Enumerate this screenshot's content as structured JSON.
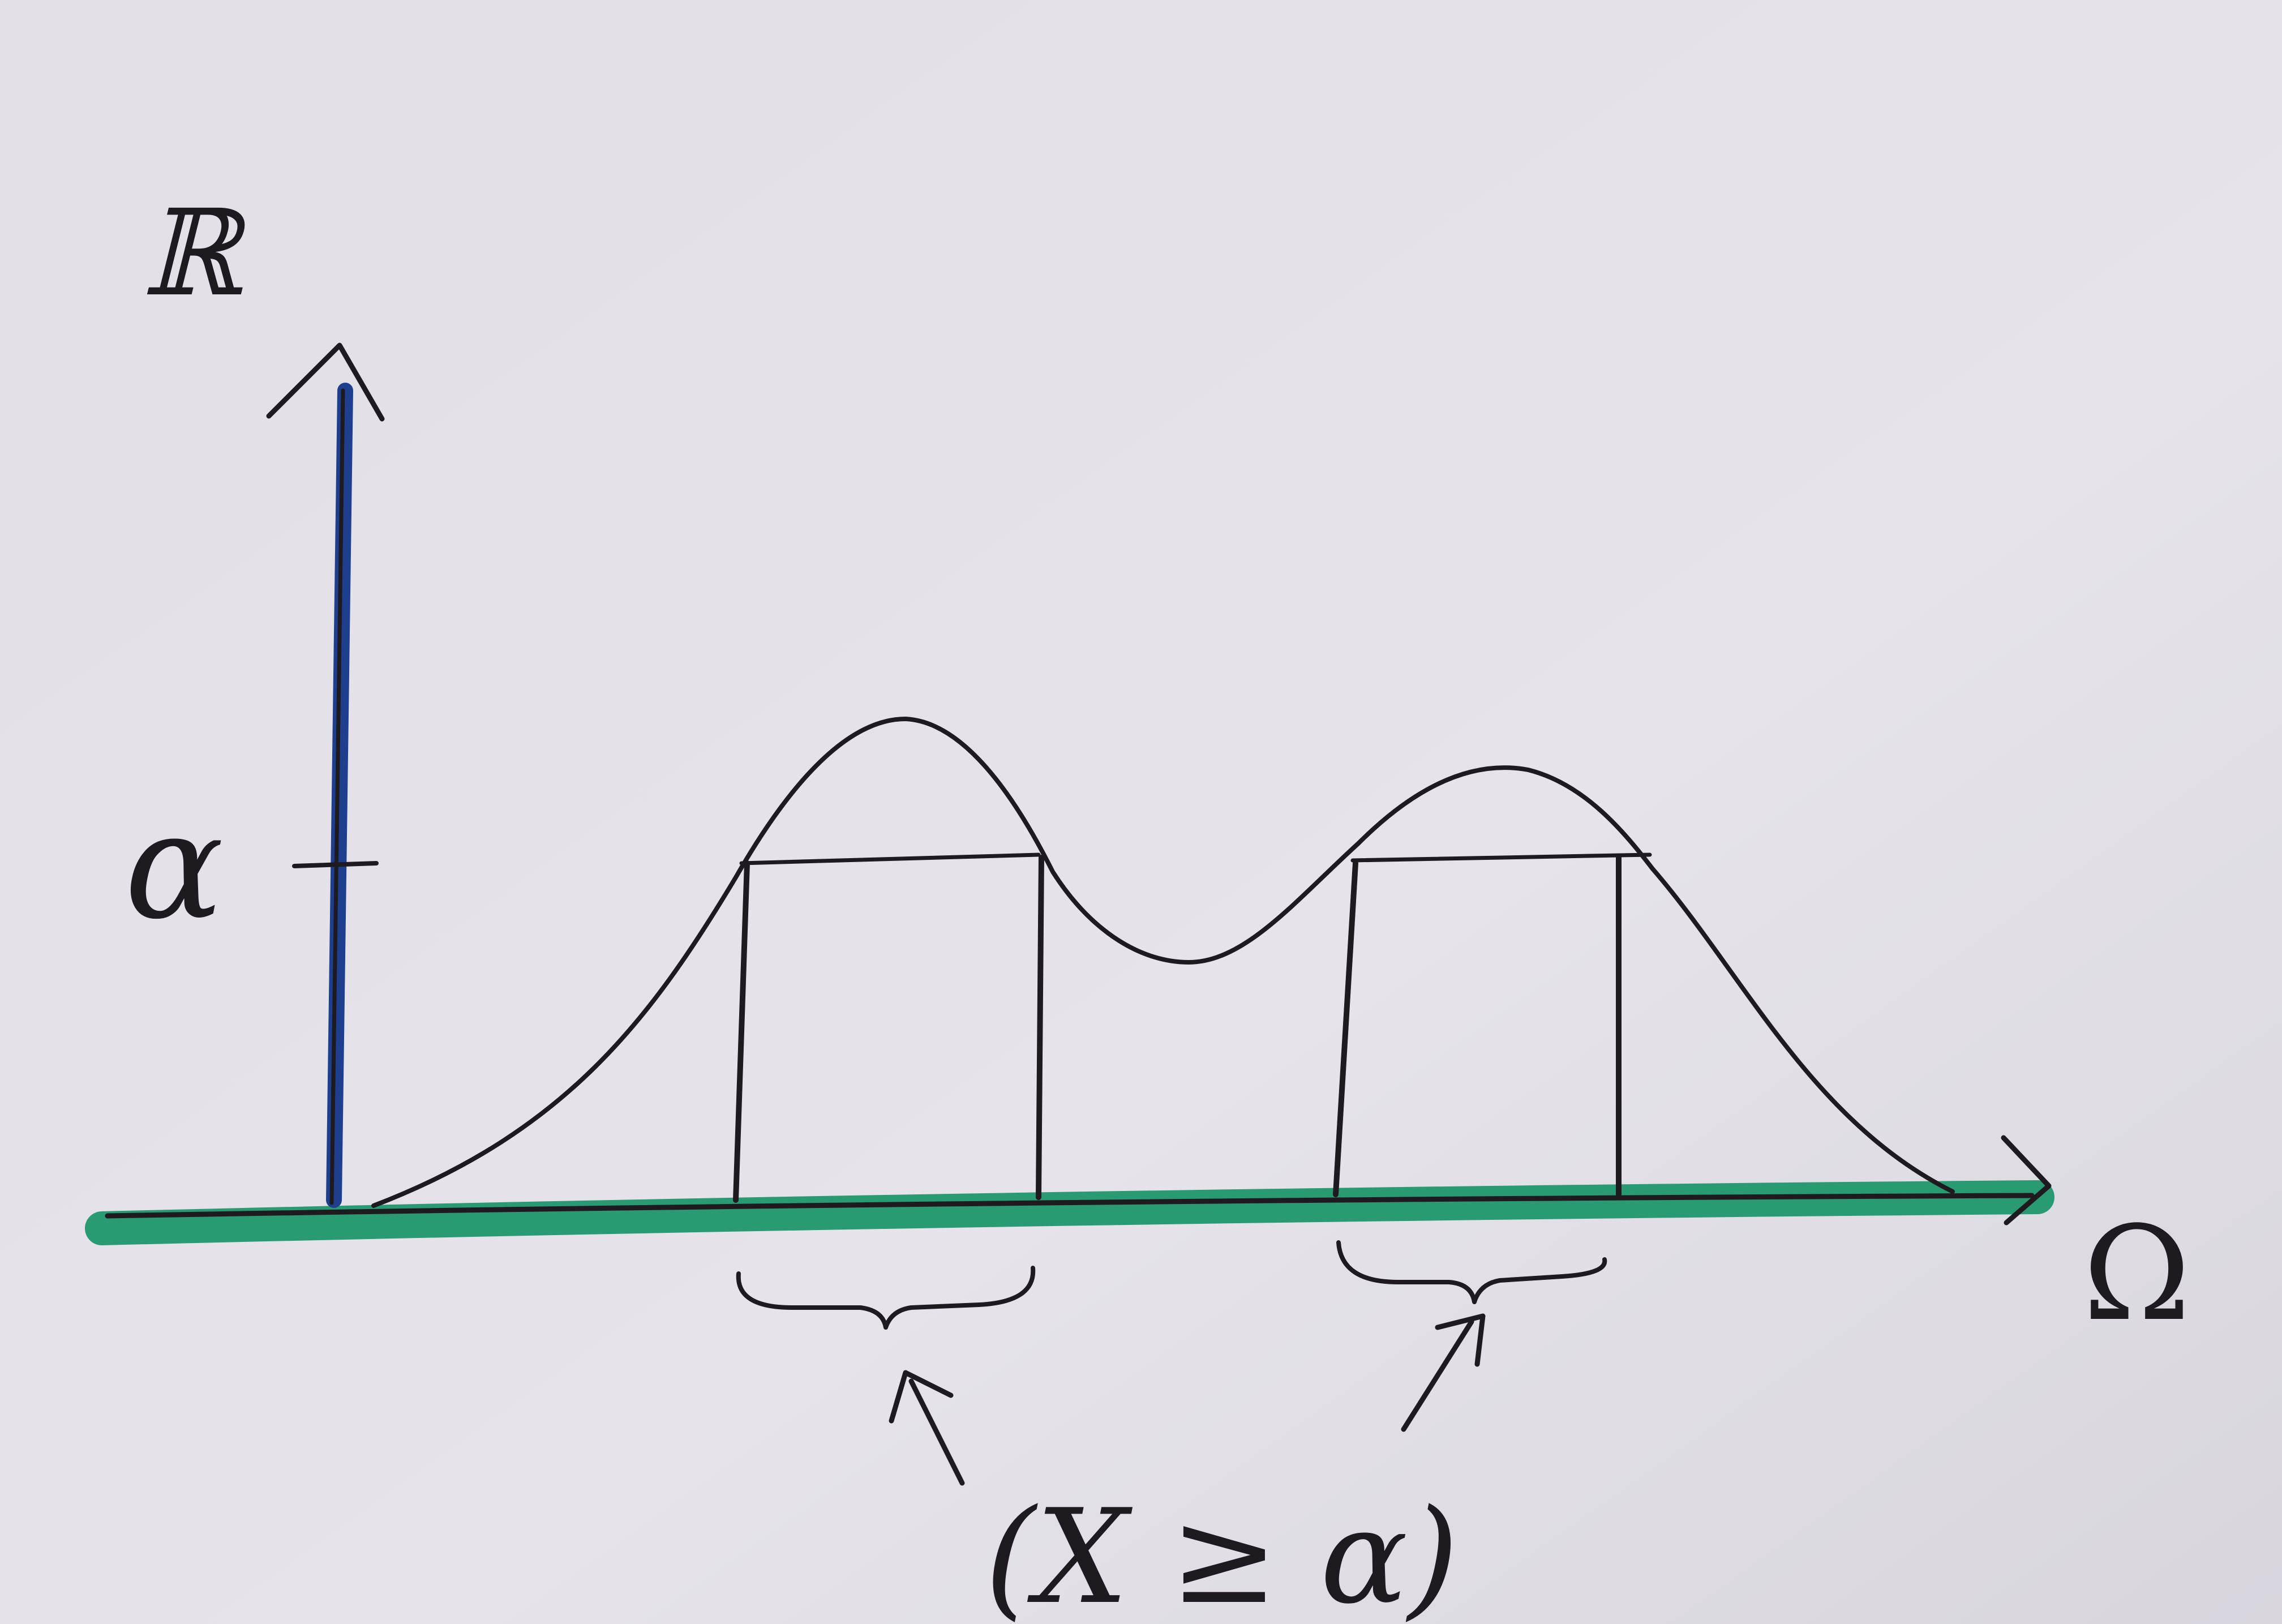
{
  "diagram": {
    "y_axis_label": "ℝ",
    "x_axis_label": "Ω",
    "threshold_label": "α",
    "set_label": "(X ≥ α)",
    "colors": {
      "paper": "#e4e1e8",
      "ink": "#1e1a20",
      "y_axis": "#1d3f8e",
      "x_axis": "#2a9a72"
    }
  }
}
